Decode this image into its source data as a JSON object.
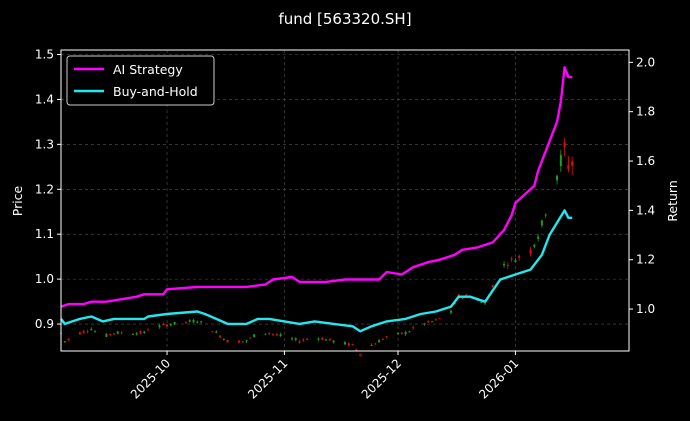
{
  "chart_data": {
    "type": "line",
    "title": "fund [563320.SH]",
    "ylabel_left": "Price",
    "ylabel_right": "Return",
    "xlim": [
      "2025-09-03",
      "2026-01-31"
    ],
    "ylim_left": [
      0.84,
      1.51
    ],
    "ylim_right": [
      0.83,
      2.05
    ],
    "x_ticks": [
      "2025-10",
      "2025-11",
      "2025-12",
      "2026-01"
    ],
    "y_ticks_left": [
      "0.9",
      "1.0",
      "1.1",
      "1.2",
      "1.3",
      "1.4",
      "1.5"
    ],
    "y_ticks_right": [
      "1.0",
      "1.2",
      "1.4",
      "1.6",
      "1.8",
      "2.0"
    ],
    "grid": true,
    "legend_position": "top-left",
    "colors": {
      "background": "#000000",
      "ai_strategy": "#ff00ff",
      "buy_and_hold": "#22e8ee",
      "candle_up": "#1f9e1f",
      "candle_down": "#e01010",
      "grid": "#555555",
      "axes": "#ffffff"
    },
    "series": [
      {
        "name": "AI Strategy",
        "axis": "right",
        "points": [
          [
            "2025-09-03",
            1.01
          ],
          [
            "2025-09-05",
            1.02
          ],
          [
            "2025-09-09",
            1.02
          ],
          [
            "2025-09-11",
            1.03
          ],
          [
            "2025-09-15",
            1.03
          ],
          [
            "2025-09-19",
            1.04
          ],
          [
            "2025-09-23",
            1.05
          ],
          [
            "2025-09-25",
            1.06
          ],
          [
            "2025-09-30",
            1.06
          ],
          [
            "2025-10-01",
            1.08
          ],
          [
            "2025-10-09",
            1.09
          ],
          [
            "2025-10-13",
            1.09
          ],
          [
            "2025-10-22",
            1.09
          ],
          [
            "2025-10-27",
            1.1
          ],
          [
            "2025-10-29",
            1.12
          ],
          [
            "2025-11-03",
            1.13
          ],
          [
            "2025-11-05",
            1.11
          ],
          [
            "2025-11-12",
            1.11
          ],
          [
            "2025-11-17",
            1.12
          ],
          [
            "2025-11-26",
            1.12
          ],
          [
            "2025-11-28",
            1.15
          ],
          [
            "2025-12-02",
            1.14
          ],
          [
            "2025-12-05",
            1.17
          ],
          [
            "2025-12-09",
            1.19
          ],
          [
            "2025-12-12",
            1.2
          ],
          [
            "2025-12-16",
            1.22
          ],
          [
            "2025-12-18",
            1.24
          ],
          [
            "2025-12-22",
            1.25
          ],
          [
            "2025-12-26",
            1.27
          ],
          [
            "2025-12-29",
            1.32
          ],
          [
            "2025-12-31",
            1.38
          ],
          [
            "2026-01-01",
            1.43
          ],
          [
            "2026-01-06",
            1.5
          ],
          [
            "2026-01-07",
            1.56
          ],
          [
            "2026-01-08",
            1.6
          ],
          [
            "2026-01-12",
            1.76
          ],
          [
            "2026-01-13",
            1.84
          ],
          [
            "2026-01-14",
            1.98
          ],
          [
            "2026-01-15",
            1.94
          ],
          [
            "2026-01-16",
            1.94
          ]
        ]
      },
      {
        "name": "Buy-and-Hold",
        "axis": "right",
        "points": [
          [
            "2025-09-03",
            0.96
          ],
          [
            "2025-09-04",
            0.94
          ],
          [
            "2025-09-08",
            0.96
          ],
          [
            "2025-09-11",
            0.97
          ],
          [
            "2025-09-14",
            0.95
          ],
          [
            "2025-09-17",
            0.96
          ],
          [
            "2025-09-21",
            0.96
          ],
          [
            "2025-09-25",
            0.96
          ],
          [
            "2025-09-26",
            0.97
          ],
          [
            "2025-10-01",
            0.98
          ],
          [
            "2025-10-09",
            0.99
          ],
          [
            "2025-10-11",
            0.98
          ],
          [
            "2025-10-14",
            0.96
          ],
          [
            "2025-10-17",
            0.94
          ],
          [
            "2025-10-22",
            0.94
          ],
          [
            "2025-10-25",
            0.96
          ],
          [
            "2025-10-28",
            0.96
          ],
          [
            "2025-11-01",
            0.95
          ],
          [
            "2025-11-05",
            0.94
          ],
          [
            "2025-11-09",
            0.95
          ],
          [
            "2025-11-14",
            0.94
          ],
          [
            "2025-11-19",
            0.93
          ],
          [
            "2025-11-21",
            0.91
          ],
          [
            "2025-11-24",
            0.93
          ],
          [
            "2025-11-28",
            0.95
          ],
          [
            "2025-12-03",
            0.96
          ],
          [
            "2025-12-07",
            0.98
          ],
          [
            "2025-12-11",
            0.99
          ],
          [
            "2025-12-15",
            1.01
          ],
          [
            "2025-12-17",
            1.05
          ],
          [
            "2025-12-20",
            1.05
          ],
          [
            "2025-12-24",
            1.03
          ],
          [
            "2025-12-28",
            1.12
          ],
          [
            "2026-01-01",
            1.14
          ],
          [
            "2026-01-05",
            1.16
          ],
          [
            "2026-01-08",
            1.22
          ],
          [
            "2026-01-10",
            1.3
          ],
          [
            "2026-01-14",
            1.4
          ],
          [
            "2026-01-15",
            1.37
          ],
          [
            "2026-01-16",
            1.37
          ]
        ]
      }
    ]
  }
}
